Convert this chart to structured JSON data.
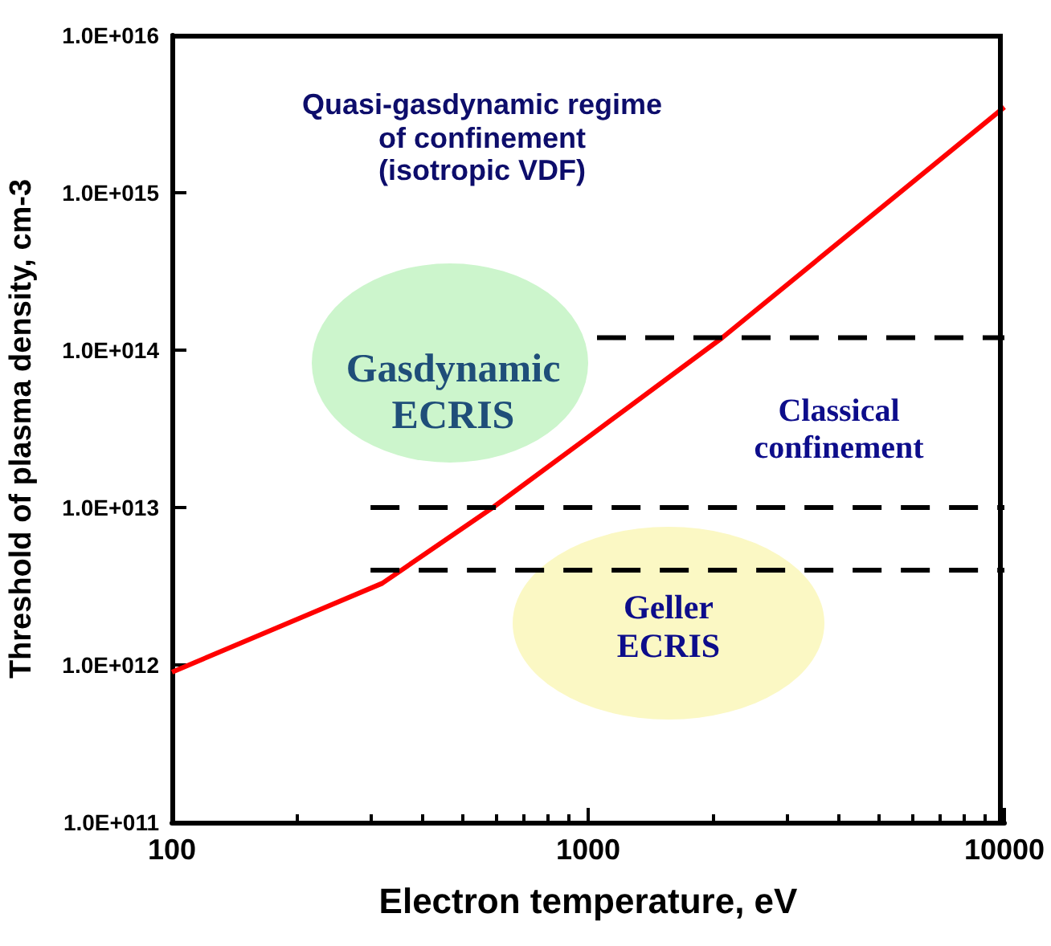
{
  "chart_data": {
    "type": "line",
    "xlabel": "Electron temperature, eV",
    "ylabel": "Threshold of plasma density, cm-3",
    "log": "xy",
    "grid": false,
    "marker": "none",
    "xlim": [
      100,
      10000
    ],
    "xticks": [
      100,
      1000,
      10000
    ],
    "ylim": [
      100000000000.0,
      1e+16
    ],
    "yticks": [
      {
        "value": 100000000000.0,
        "label": "1.0E+011"
      },
      {
        "value": 1000000000000.0,
        "label": "1.0E+012"
      },
      {
        "value": 10000000000000.0,
        "label": "1.0E+013"
      },
      {
        "value": 100000000000000.0,
        "label": "1.0E+014"
      },
      {
        "value": 1000000000000000.0,
        "label": "1.0E+015"
      },
      {
        "value": 1e+16,
        "label": "1.0E+016"
      }
    ],
    "series": [
      {
        "color": "#ff0000",
        "line_style": "solid",
        "x": [
          100,
          320,
          590,
          1000,
          2100,
          10000
        ],
        "values": [
          900000000000.0,
          3300000000000.0,
          10000000000000.0,
          28000000000000.0,
          120000000000000.0,
          3500000000000000.0
        ]
      },
      {
        "color": "#000000",
        "line_style": "dashed",
        "x": [
          1050,
          10000
        ],
        "values": [
          120000000000000.0,
          120000000000000.0
        ]
      },
      {
        "color": "#000000",
        "line_style": "dashed",
        "x": [
          300,
          10000
        ],
        "values": [
          10000000000000.0,
          10000000000000.0
        ]
      },
      {
        "color": "#000000",
        "line_style": "dashed",
        "x": [
          300,
          10000
        ],
        "values": [
          4000000000000.0,
          4000000000000.0
        ]
      }
    ],
    "annotations": [
      "Quasi-gasdynamic regime\nof confinement\n(isotropic VDF)",
      "Gasdynamic\nECRIS",
      "Classical\nconfinement",
      "Geller\nECRIS"
    ]
  }
}
